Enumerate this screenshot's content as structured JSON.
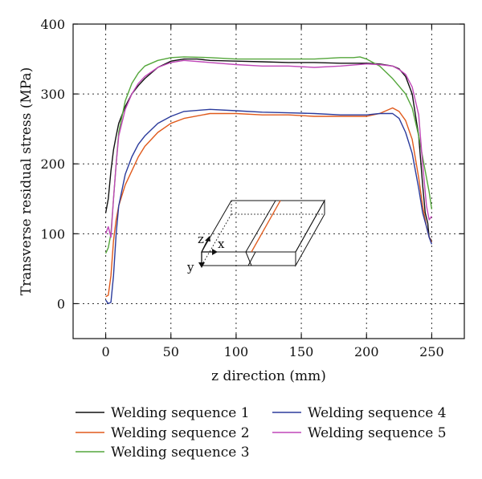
{
  "chart_data": {
    "type": "line",
    "title": "",
    "xlabel": "z direction (mm)",
    "ylabel": "Transverse residual stress (MPa)",
    "xlim": [
      -25,
      275
    ],
    "ylim": [
      -50,
      400
    ],
    "xticks": [
      0,
      50,
      100,
      150,
      200,
      250
    ],
    "yticks": [
      0,
      100,
      200,
      300,
      400
    ],
    "grid": true,
    "legend_position": "bottom",
    "series": [
      {
        "name": "Welding sequence 1",
        "color": "#111111",
        "x": [
          0,
          2,
          4,
          6,
          8,
          10,
          15,
          20,
          25,
          30,
          40,
          50,
          60,
          70,
          80,
          100,
          120,
          140,
          160,
          180,
          200,
          210,
          220,
          225,
          230,
          235,
          240,
          243,
          245,
          247,
          248,
          250
        ],
        "y": [
          130,
          150,
          190,
          220,
          240,
          258,
          282,
          300,
          312,
          322,
          338,
          347,
          350,
          350,
          348,
          347,
          346,
          345,
          345,
          344,
          344,
          343,
          340,
          336,
          325,
          300,
          240,
          170,
          130,
          115,
          95,
          90
        ]
      },
      {
        "name": "Welding sequence 2",
        "color": "#e05a1c",
        "x": [
          0,
          2,
          4,
          6,
          8,
          10,
          15,
          20,
          25,
          30,
          40,
          50,
          60,
          80,
          100,
          120,
          140,
          160,
          180,
          200,
          210,
          215,
          220,
          225,
          230,
          235,
          240,
          243,
          246,
          248,
          250
        ],
        "y": [
          10,
          12,
          40,
          90,
          120,
          140,
          170,
          190,
          210,
          225,
          245,
          258,
          265,
          272,
          272,
          270,
          270,
          268,
          268,
          268,
          272,
          276,
          280,
          275,
          262,
          235,
          180,
          140,
          110,
          95,
          88
        ]
      },
      {
        "name": "Welding sequence 3",
        "color": "#54a63b",
        "x": [
          0,
          2,
          4,
          6,
          8,
          10,
          15,
          20,
          25,
          30,
          40,
          50,
          60,
          80,
          100,
          120,
          140,
          160,
          180,
          190,
          195,
          200,
          210,
          220,
          230,
          235,
          240,
          245,
          248,
          250
        ],
        "y": [
          72,
          80,
          100,
          150,
          200,
          245,
          290,
          315,
          330,
          340,
          348,
          352,
          353,
          352,
          350,
          350,
          350,
          350,
          352,
          352,
          353,
          350,
          340,
          322,
          300,
          280,
          240,
          190,
          160,
          135
        ]
      },
      {
        "name": "Welding sequence 4",
        "color": "#2b3b9c",
        "x": [
          0,
          2,
          4,
          6,
          8,
          10,
          15,
          20,
          25,
          30,
          40,
          50,
          60,
          80,
          100,
          120,
          140,
          160,
          180,
          200,
          210,
          220,
          225,
          230,
          235,
          240,
          243,
          246,
          248,
          250
        ],
        "y": [
          5,
          0,
          2,
          40,
          100,
          140,
          185,
          210,
          228,
          240,
          258,
          268,
          275,
          278,
          276,
          274,
          273,
          272,
          270,
          270,
          272,
          272,
          265,
          245,
          215,
          165,
          130,
          110,
          95,
          85
        ]
      },
      {
        "name": "Welding sequence 5",
        "color": "#c047b8",
        "x": [
          0,
          2,
          4,
          6,
          8,
          10,
          15,
          20,
          25,
          30,
          40,
          50,
          60,
          80,
          100,
          120,
          140,
          160,
          180,
          200,
          210,
          220,
          225,
          230,
          235,
          240,
          243,
          246,
          248,
          250
        ],
        "y": [
          100,
          110,
          95,
          150,
          200,
          240,
          278,
          300,
          315,
          325,
          338,
          345,
          348,
          345,
          342,
          340,
          340,
          338,
          340,
          343,
          342,
          340,
          335,
          328,
          310,
          270,
          200,
          140,
          120,
          125
        ]
      }
    ],
    "inset": {
      "labels": [
        "z",
        "x",
        "y"
      ]
    }
  }
}
